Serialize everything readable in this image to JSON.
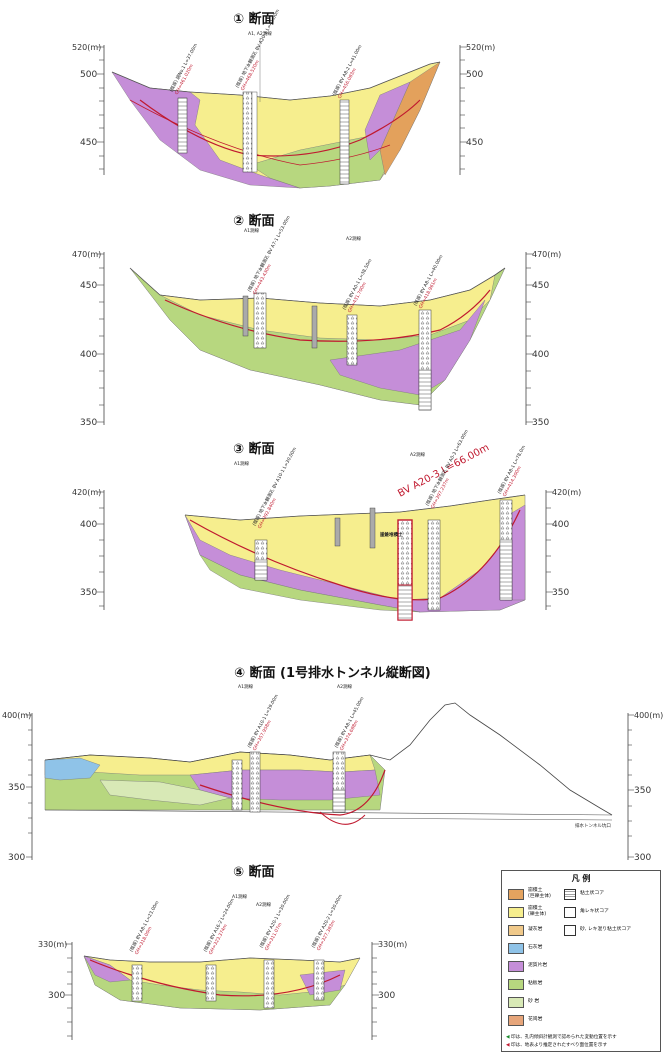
{
  "sections": {
    "s1": {
      "title": "① 断面",
      "axis_top": "520(m)",
      "ticks": [
        "500",
        "450"
      ]
    },
    "s2": {
      "title": "② 断面",
      "axis_top": "470(m)",
      "ticks": [
        "450",
        "400",
        "350"
      ]
    },
    "s3": {
      "title": "③ 断面",
      "axis_top": "420(m)",
      "ticks": [
        "400",
        "350"
      ],
      "highlight": "BV A20-3 L=66.00m",
      "label_soil": "崖錐堆積土"
    },
    "s4": {
      "title": "④ 断面 (1号排水トンネル縦断図)",
      "axis_top": "400(m)",
      "ticks": [
        "350",
        "300"
      ],
      "tunnel_label": "排水トンネル坑口"
    },
    "s5": {
      "title": "⑤ 断面",
      "axis_top": "330(m)",
      "ticks": [
        "300"
      ]
    }
  },
  "survey_lines": {
    "a1": "A1測線",
    "a2": "A2測線",
    "a1a2": "A1, A2測線"
  },
  "boreholes": {
    "s1": [
      {
        "label": "(既設) 調No.1 L=37.00m",
        "gh": "GH=461.020m"
      },
      {
        "label": "(既設) 地下水観測孔 BV A20-1 L=41.00m",
        "gh": "GH=468.520m"
      },
      {
        "label": "(既設) BV A8-2 L=41.00m",
        "gh": "GH=456.083m"
      }
    ],
    "s2": [
      {
        "label": "(既設) 地下水観測孔 BV A7-1 L=53.00m",
        "gh": "GH=443.430m"
      },
      {
        "label": "(既設) BV A0-1 L=38.50m",
        "gh": "GH=431.700m"
      },
      {
        "label": "(既設) BV A8-1 L=40.00m",
        "gh": "GH=418.961m"
      }
    ],
    "s3": [
      {
        "label": "(既設) 地下水観測孔 BV A10-1 L=30.00m",
        "gh": "GH=392.840m"
      },
      {
        "label": "(既設) 地下水観測孔 BV A0-3 L=63.00m",
        "gh": "GH=397.237m"
      },
      {
        "label": "(既設) BV A8-1 L=78.0m",
        "gh": "GH=414.300m"
      }
    ],
    "s4": [
      {
        "label": "(既設) BV A10-1 L=39.00m",
        "gh": "GH=357.958m"
      },
      {
        "label": "(既設) BV A8-1 L=45.00m",
        "gh": "GH=374.688m"
      }
    ],
    "s5": [
      {
        "label": "(既設) BV A8-1 L=23.00m",
        "gh": "GH=318.00m"
      },
      {
        "label": "(既設) BV A16-2 L=24.00m",
        "gh": "GH=323.374m"
      },
      {
        "label": "(既設) BV A20-1 L=30.00m",
        "gh": "GH=311.07m"
      },
      {
        "label": "(既設) BV A20-2 L=30.00m",
        "gh": "GH=327.383m"
      }
    ]
  },
  "legend": {
    "title": "凡 例",
    "soils": [
      {
        "name": "崩積土",
        "sub": "(巨礫主体)",
        "color": "#e4a35f"
      },
      {
        "name": "崩積土",
        "sub": "(礫主体)",
        "color": "#f6ee8e"
      },
      {
        "name": "凝灰岩",
        "sub": "",
        "color": "#f0c98a"
      },
      {
        "name": "石灰岩",
        "sub": "",
        "color": "#8fc3e8"
      },
      {
        "name": "泥質片岩",
        "sub": "",
        "color": "#c58ed8"
      },
      {
        "name": "粘板岩",
        "sub": "",
        "color": "#b7d77f"
      },
      {
        "name": "砂 岩",
        "sub": "",
        "color": "#d8e9b6"
      },
      {
        "name": "花崗岩",
        "sub": "",
        "color": "#e6a57a"
      }
    ],
    "cores": [
      "粘土状コア",
      "角レキ状コア",
      "砂, レキ混り粘土状コア"
    ],
    "notes": [
      "印は、孔内傾斜計観測で認められた変動位置を示す",
      "印は、地表より推定されたすべり面位置を示す"
    ]
  },
  "colors": {
    "yellow": "#f6ee8e",
    "purple": "#c58ed8",
    "green": "#b7d77f",
    "lightgreen": "#d8e9b6",
    "orange": "#e3a15c",
    "blue": "#8fc3e8",
    "slip": "#c0192f"
  }
}
